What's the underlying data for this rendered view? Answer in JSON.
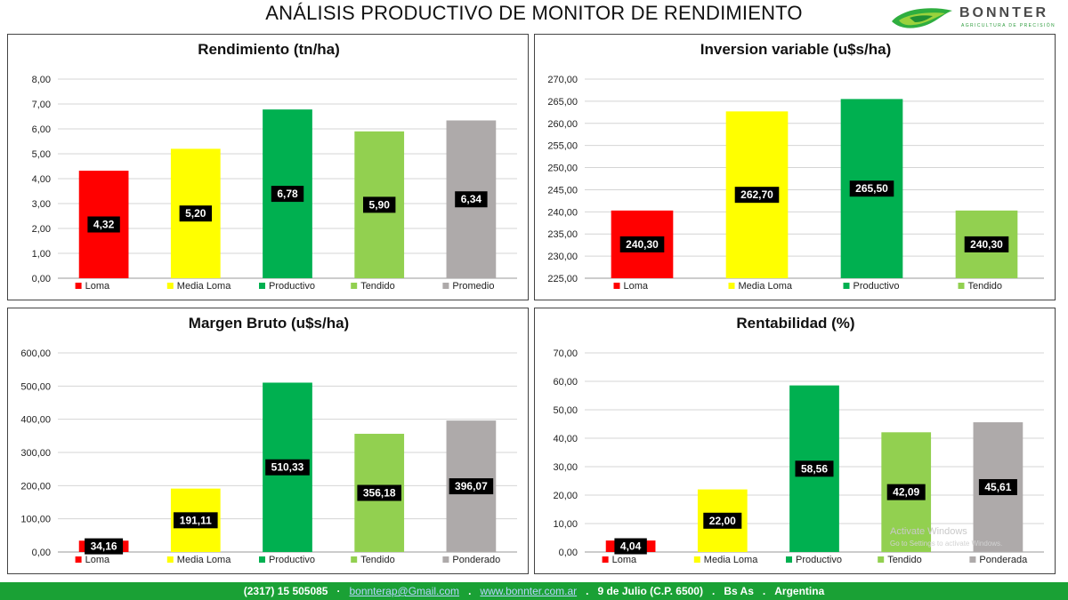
{
  "page": {
    "title": "ANÁLISIS PRODUCTIVO DE MONITOR DE RENDIMIENTO",
    "logo": {
      "name": "BONNTER",
      "tagline": "AGRICULTURA DE PRECISIÓN"
    }
  },
  "footer": {
    "phone": "(2317) 15 505085",
    "email": "bonnterap@Gmail.com",
    "website": "www.bonnter.com.ar",
    "address": "9 de Julio (C.P. 6500)",
    "province": "Bs As",
    "country": "Argentina"
  },
  "watermark": {
    "title": "Activate Windows",
    "subtitle": "Go to Settings to activate Windows."
  },
  "colors": {
    "loma": "#ff0000",
    "media_loma": "#ffff00",
    "productivo": "#00b050",
    "tendido": "#92d050",
    "gris": "#aeaaaa",
    "footer": "#1aa135"
  },
  "chart_data": [
    {
      "type": "bar",
      "title": "Rendimiento (tn/ha)",
      "categories": [
        "Loma",
        "Media Loma",
        "Productivo",
        "Tendido",
        "Promedio"
      ],
      "values": [
        4.32,
        5.2,
        6.78,
        5.9,
        6.34
      ],
      "value_labels": [
        "4,32",
        "5,20",
        "6,78",
        "5,90",
        "6,34"
      ],
      "colors": [
        "#ff0000",
        "#ffff00",
        "#00b050",
        "#92d050",
        "#aeaaaa"
      ],
      "ylim": [
        0,
        8
      ],
      "yticks": [
        0,
        1,
        2,
        3,
        4,
        5,
        6,
        7,
        8
      ],
      "ytick_labels": [
        "0,00",
        "1,00",
        "2,00",
        "3,00",
        "4,00",
        "5,00",
        "6,00",
        "7,00",
        "8,00"
      ],
      "grid": true,
      "legend": "bottom"
    },
    {
      "type": "bar",
      "title": "Inversion variable (u$s/ha)",
      "categories": [
        "Loma",
        "Media Loma",
        "Productivo",
        "Tendido"
      ],
      "values": [
        240.3,
        262.7,
        265.5,
        240.3
      ],
      "value_labels": [
        "240,30",
        "262,70",
        "265,50",
        "240,30"
      ],
      "colors": [
        "#ff0000",
        "#ffff00",
        "#00b050",
        "#92d050"
      ],
      "ylim": [
        225,
        270
      ],
      "yticks": [
        225,
        230,
        235,
        240,
        245,
        250,
        255,
        260,
        265,
        270
      ],
      "ytick_labels": [
        "225,00",
        "230,00",
        "235,00",
        "240,00",
        "245,00",
        "250,00",
        "255,00",
        "260,00",
        "265,00",
        "270,00"
      ],
      "grid": true,
      "legend": "bottom"
    },
    {
      "type": "bar",
      "title": "Margen Bruto (u$s/ha)",
      "categories": [
        "Loma",
        "Media Loma",
        "Productivo",
        "Tendido",
        "Ponderado"
      ],
      "values": [
        34.16,
        191.11,
        510.33,
        356.18,
        396.07
      ],
      "value_labels": [
        "34,16",
        "191,11",
        "510,33",
        "356,18",
        "396,07"
      ],
      "colors": [
        "#ff0000",
        "#ffff00",
        "#00b050",
        "#92d050",
        "#aeaaaa"
      ],
      "ylim": [
        0,
        600
      ],
      "yticks": [
        0,
        100,
        200,
        300,
        400,
        500,
        600
      ],
      "ytick_labels": [
        "0,00",
        "100,00",
        "200,00",
        "300,00",
        "400,00",
        "500,00",
        "600,00"
      ],
      "grid": true,
      "legend": "bottom"
    },
    {
      "type": "bar",
      "title": "Rentabilidad (%)",
      "categories": [
        "Loma",
        "Media Loma",
        "Productivo",
        "Tendido",
        "Ponderada"
      ],
      "values": [
        4.04,
        22.0,
        58.56,
        42.09,
        45.61
      ],
      "value_labels": [
        "4,04",
        "22,00",
        "58,56",
        "42,09",
        "45,61"
      ],
      "colors": [
        "#ff0000",
        "#ffff00",
        "#00b050",
        "#92d050",
        "#aeaaaa"
      ],
      "ylim": [
        0,
        70
      ],
      "yticks": [
        0,
        10,
        20,
        30,
        40,
        50,
        60,
        70
      ],
      "ytick_labels": [
        "0,00",
        "10,00",
        "20,00",
        "30,00",
        "40,00",
        "50,00",
        "60,00",
        "70,00"
      ],
      "grid": true,
      "legend": "bottom"
    }
  ]
}
